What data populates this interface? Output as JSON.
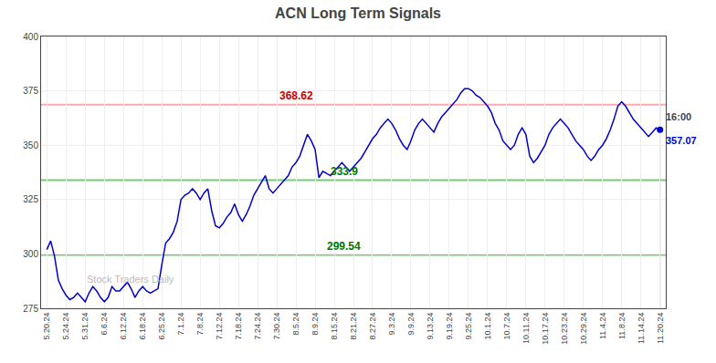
{
  "chart_data": {
    "type": "line",
    "title": "ACN Long Term Signals",
    "color": "#0000cc",
    "x": [
      0,
      0.2,
      0.4,
      0.6,
      0.8,
      1,
      1.2,
      1.4,
      1.6,
      1.8,
      2,
      2.2,
      2.4,
      2.6,
      2.8,
      3,
      3.2,
      3.4,
      3.6,
      3.8,
      4,
      4.2,
      4.4,
      4.6,
      4.8,
      5,
      5.2,
      5.4,
      5.6,
      5.8,
      6,
      6.2,
      6.4,
      6.6,
      6.8,
      7,
      7.2,
      7.4,
      7.6,
      7.8,
      8,
      8.2,
      8.4,
      8.6,
      8.8,
      9,
      9.2,
      9.4,
      9.6,
      9.8,
      10,
      10.2,
      10.4,
      10.6,
      10.8,
      11,
      11.2,
      11.4,
      11.6,
      11.8,
      12,
      12.2,
      12.4,
      12.6,
      12.8,
      13,
      13.2,
      13.4,
      13.6,
      13.8,
      14,
      14.2,
      14.4,
      14.6,
      14.8,
      15,
      15.2,
      15.4,
      15.6,
      15.8,
      16,
      16.2,
      16.4,
      16.6,
      16.8,
      17,
      17.2,
      17.4,
      17.6,
      17.8,
      18,
      18.2,
      18.4,
      18.6,
      18.8,
      19,
      19.2,
      19.4,
      19.6,
      19.8,
      20,
      20.2,
      20.4,
      20.6,
      20.8,
      21,
      21.2,
      21.4,
      21.6,
      21.8,
      22,
      22.2,
      22.4,
      22.6,
      22.8,
      23,
      23.2,
      23.4,
      23.6,
      23.8,
      24,
      24.2,
      24.4,
      24.6,
      24.8,
      25,
      25.2,
      25.4,
      25.6,
      25.8,
      26,
      26.2,
      26.4,
      26.6,
      26.8,
      27,
      27.2,
      27.4,
      27.6,
      27.8,
      28,
      28.2,
      28.4,
      28.6,
      28.8,
      29,
      29.2,
      29.4,
      29.6,
      29.8,
      30,
      30.2,
      30.4,
      30.6,
      30.8,
      31,
      31.2,
      31.4,
      31.6,
      31.8,
      32
    ],
    "values": [
      302,
      306,
      299,
      288,
      284,
      281,
      279,
      280,
      282,
      280,
      278,
      282,
      285,
      283,
      280,
      278,
      280,
      285,
      283,
      283,
      285,
      287,
      284,
      280,
      283,
      285,
      283,
      282,
      283,
      284,
      295,
      305,
      307,
      310,
      315,
      325,
      327,
      328,
      330,
      328,
      325,
      328,
      330,
      320,
      313,
      312,
      314,
      317,
      319,
      323,
      318,
      315,
      318,
      322,
      327,
      330,
      333,
      336,
      330,
      328,
      330,
      332,
      334,
      336,
      340,
      342,
      345,
      350,
      355,
      352,
      348,
      335,
      338,
      337,
      336,
      338,
      340,
      342,
      340,
      338,
      340,
      342,
      344,
      347,
      350,
      353,
      355,
      358,
      360,
      362,
      360,
      357,
      353,
      350,
      348,
      352,
      357,
      360,
      362,
      360,
      358,
      356,
      360,
      363,
      365,
      367,
      369,
      371,
      374,
      376,
      376,
      375,
      373,
      372,
      370,
      368,
      365,
      360,
      357,
      352,
      350,
      348,
      350,
      355,
      358,
      355,
      345,
      342,
      344,
      347,
      350,
      355,
      358,
      360,
      362,
      360,
      358,
      355,
      352,
      350,
      348,
      345,
      343,
      345,
      348,
      350,
      353,
      357,
      362,
      368,
      370,
      368,
      365,
      362,
      360,
      358,
      356,
      354,
      356,
      358,
      357
    ],
    "xlim": [
      -0.3,
      32.3
    ],
    "xticks": [
      {
        "value": 0,
        "label": "5.20.24"
      },
      {
        "value": 1,
        "label": "5.24.24"
      },
      {
        "value": 2,
        "label": "5.31.24"
      },
      {
        "value": 3,
        "label": "6.6.24"
      },
      {
        "value": 4,
        "label": "6.12.24"
      },
      {
        "value": 5,
        "label": "6.18.24"
      },
      {
        "value": 6,
        "label": "6.25.24"
      },
      {
        "value": 7,
        "label": "7.1.24"
      },
      {
        "value": 8,
        "label": "7.8.24"
      },
      {
        "value": 9,
        "label": "7.12.24"
      },
      {
        "value": 10,
        "label": "7.18.24"
      },
      {
        "value": 11,
        "label": "7.24.24"
      },
      {
        "value": 12,
        "label": "7.30.24"
      },
      {
        "value": 13,
        "label": "8.5.24"
      },
      {
        "value": 14,
        "label": "8.9.24"
      },
      {
        "value": 15,
        "label": "8.15.24"
      },
      {
        "value": 16,
        "label": "8.21.24"
      },
      {
        "value": 17,
        "label": "8.27.24"
      },
      {
        "value": 18,
        "label": "9.3.24"
      },
      {
        "value": 19,
        "label": "9.9.24"
      },
      {
        "value": 20,
        "label": "9.13.24"
      },
      {
        "value": 21,
        "label": "9.19.24"
      },
      {
        "value": 22,
        "label": "9.25.24"
      },
      {
        "value": 23,
        "label": "10.1.24"
      },
      {
        "value": 24,
        "label": "10.7.24"
      },
      {
        "value": 25,
        "label": "10.11.24"
      },
      {
        "value": 26,
        "label": "10.17.24"
      },
      {
        "value": 27,
        "label": "10.23.24"
      },
      {
        "value": 28,
        "label": "10.29.24"
      },
      {
        "value": 29,
        "label": "11.4.24"
      },
      {
        "value": 30,
        "label": "11.8.24"
      },
      {
        "value": 31,
        "label": "11.14.24"
      },
      {
        "value": 32,
        "label": "11.20.24"
      }
    ],
    "ylim": [
      275,
      400
    ],
    "yticks": [
      275,
      300,
      325,
      350,
      375,
      400
    ],
    "grid": true,
    "hlines": [
      {
        "value": 368.62,
        "color": "#ffaaaa",
        "label": "368.62",
        "label_color": "#cc0000"
      },
      {
        "value": 333.9,
        "color": "#77cc77",
        "label": "333.9",
        "label_color": "#007700"
      },
      {
        "value": 299.54,
        "color": "#77cc77",
        "label": "299.54",
        "label_color": "#007700"
      }
    ],
    "last_point": {
      "value": 357.07,
      "time": "16:00",
      "vline_color": "#aaaaaa"
    },
    "annotations": [
      {
        "text": "Stock Traders Daily",
        "color": "#bbbbbb"
      }
    ]
  }
}
